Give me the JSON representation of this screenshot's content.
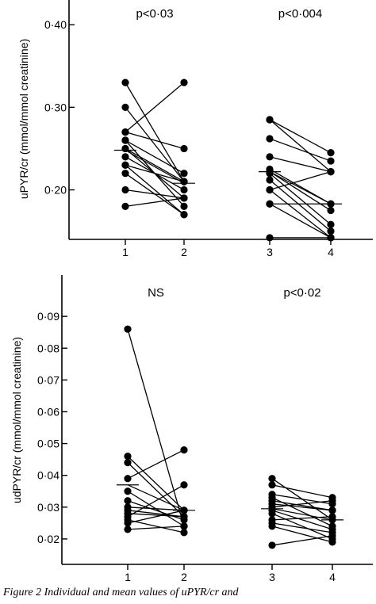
{
  "caption": "Figure 2   Individual and mean values of uPYR/cr and",
  "chart_data": [
    {
      "type": "scatter",
      "ylabel": "uPYR/cr (mmol/mmol creatinine)",
      "yticks": [
        "0·20",
        "0·30",
        "0·40"
      ],
      "ytick_values": [
        0.2,
        0.3,
        0.4
      ],
      "ylim": [
        0.14,
        0.43
      ],
      "xticks": [
        "1",
        "2",
        "3",
        "4"
      ],
      "pvalues": [
        "p<0·03",
        "p<0·004"
      ],
      "groups": [
        {
          "x": [
            1,
            2
          ],
          "mean": [
            0.248,
            0.208
          ],
          "pairs": [
            [
              0.33,
              0.21
            ],
            [
              0.27,
              0.33
            ],
            [
              0.27,
              0.25
            ],
            [
              0.26,
              0.22
            ],
            [
              0.25,
              0.21
            ],
            [
              0.25,
              0.19
            ],
            [
              0.24,
              0.2
            ],
            [
              0.23,
              0.17
            ],
            [
              0.23,
              0.21
            ],
            [
              0.22,
              0.17
            ],
            [
              0.2,
              0.19
            ],
            [
              0.18,
              0.19
            ],
            [
              0.3,
              0.21
            ],
            [
              0.26,
              0.18
            ]
          ]
        },
        {
          "x": [
            3,
            4
          ],
          "mean": [
            0.222,
            0.183
          ],
          "pairs": [
            [
              0.285,
              0.222
            ],
            [
              0.285,
              0.245
            ],
            [
              0.262,
              0.235
            ],
            [
              0.24,
              0.222
            ],
            [
              0.225,
              0.183
            ],
            [
              0.222,
              0.175
            ],
            [
              0.22,
              0.158
            ],
            [
              0.212,
              0.15
            ],
            [
              0.2,
              0.142
            ],
            [
              0.2,
              0.222
            ],
            [
              0.183,
              0.142
            ],
            [
              0.142,
              0.142
            ],
            [
              0.183,
              0.183
            ]
          ]
        }
      ]
    },
    {
      "type": "scatter",
      "ylabel": "udPYR/cr (mmol/mmol creatinine)",
      "yticks": [
        "0·02",
        "0·03",
        "0·04",
        "0·05",
        "0·06",
        "0·07",
        "0·08",
        "0·09"
      ],
      "ytick_values": [
        0.02,
        0.03,
        0.04,
        0.05,
        0.06,
        0.07,
        0.08,
        0.09
      ],
      "ylim": [
        0.012,
        0.103
      ],
      "xticks": [
        "1",
        "2",
        "3",
        "4"
      ],
      "pvalues": [
        "NS",
        "p<0·02"
      ],
      "groups": [
        {
          "x": [
            1,
            2
          ],
          "mean": [
            0.037,
            0.029
          ],
          "pairs": [
            [
              0.086,
              0.024
            ],
            [
              0.046,
              0.029
            ],
            [
              0.044,
              0.027
            ],
            [
              0.039,
              0.048
            ],
            [
              0.035,
              0.024
            ],
            [
              0.032,
              0.026
            ],
            [
              0.03,
              0.029
            ],
            [
              0.028,
              0.027
            ],
            [
              0.027,
              0.037
            ],
            [
              0.026,
              0.022
            ],
            [
              0.025,
              0.029
            ],
            [
              0.023,
              0.024
            ],
            [
              0.029,
              0.027
            ]
          ]
        },
        {
          "x": [
            3,
            4
          ],
          "mean": [
            0.0295,
            0.026
          ],
          "pairs": [
            [
              0.039,
              0.026
            ],
            [
              0.037,
              0.033
            ],
            [
              0.034,
              0.031
            ],
            [
              0.033,
              0.024
            ],
            [
              0.032,
              0.029
            ],
            [
              0.031,
              0.029
            ],
            [
              0.03,
              0.032
            ],
            [
              0.029,
              0.023
            ],
            [
              0.028,
              0.02
            ],
            [
              0.026,
              0.027
            ],
            [
              0.025,
              0.022
            ],
            [
              0.024,
              0.019
            ],
            [
              0.018,
              0.021
            ]
          ]
        }
      ]
    }
  ]
}
